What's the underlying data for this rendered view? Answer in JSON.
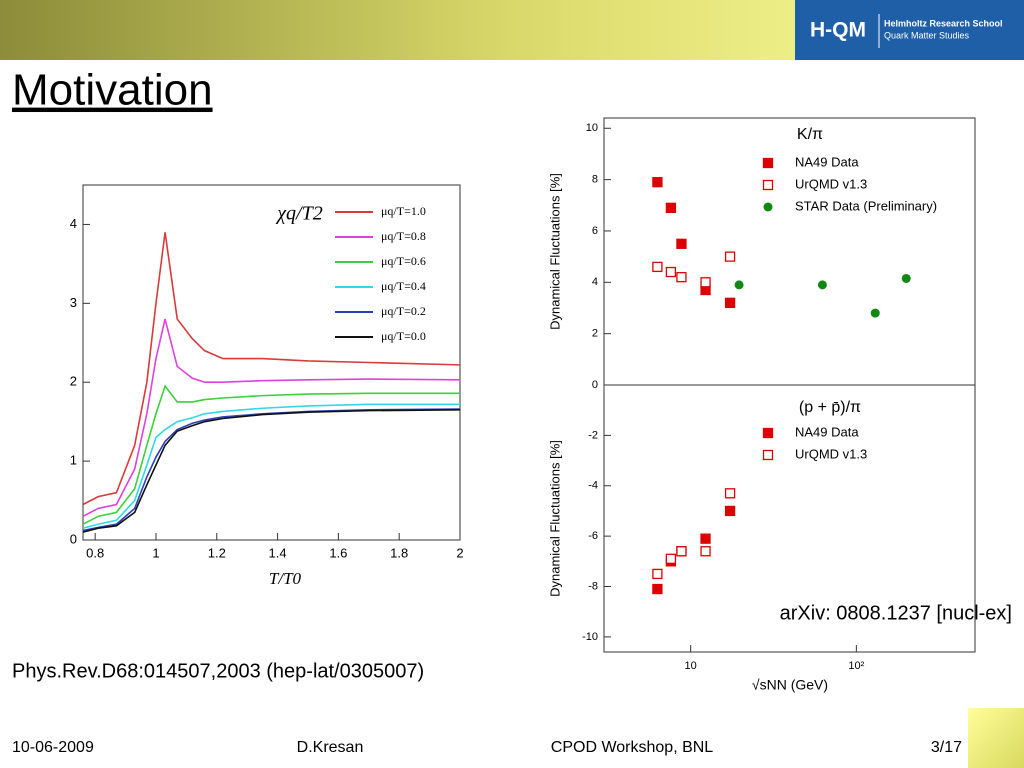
{
  "header": {
    "title": "Motivation",
    "logo": {
      "name": "H-QM",
      "line1": "Helmholtz Research School",
      "line2": "Quark Matter Studies"
    }
  },
  "chart_data": [
    {
      "type": "line",
      "title": "χq/T2",
      "xlabel": "T/T0",
      "xlim": [
        0.76,
        2
      ],
      "xticks": [
        0.8,
        1,
        1.2,
        1.4,
        1.6,
        1.8,
        2
      ],
      "ylim": [
        0,
        4.5
      ],
      "yticks": [
        0,
        1,
        2,
        3,
        4
      ],
      "x": [
        0.76,
        0.81,
        0.87,
        0.93,
        0.97,
        1.0,
        1.03,
        1.07,
        1.12,
        1.16,
        1.22,
        1.35,
        1.5,
        1.7,
        2.0
      ],
      "series": [
        {
          "name": "μq/T=1.0",
          "color": "#d93a3a",
          "values": [
            0.45,
            0.55,
            0.6,
            1.2,
            2.0,
            3.0,
            3.9,
            2.8,
            2.55,
            2.4,
            2.3,
            2.3,
            2.27,
            2.25,
            2.22
          ]
        },
        {
          "name": "μq/T=0.8",
          "color": "#e040e0",
          "values": [
            0.3,
            0.4,
            0.45,
            0.9,
            1.6,
            2.3,
            2.8,
            2.2,
            2.05,
            2.0,
            2.0,
            2.02,
            2.03,
            2.04,
            2.03
          ]
        },
        {
          "name": "μq/T=0.6",
          "color": "#3ad13a",
          "values": [
            0.2,
            0.3,
            0.35,
            0.65,
            1.2,
            1.6,
            1.95,
            1.75,
            1.75,
            1.78,
            1.8,
            1.83,
            1.85,
            1.86,
            1.86
          ]
        },
        {
          "name": "μq/T=0.4",
          "color": "#30d8e8",
          "values": [
            0.15,
            0.2,
            0.25,
            0.5,
            0.95,
            1.3,
            1.4,
            1.5,
            1.55,
            1.6,
            1.63,
            1.67,
            1.7,
            1.72,
            1.72
          ]
        },
        {
          "name": "μq/T=0.2",
          "color": "#2b3fb8",
          "values": [
            0.12,
            0.16,
            0.2,
            0.4,
            0.8,
            1.05,
            1.25,
            1.4,
            1.48,
            1.52,
            1.56,
            1.6,
            1.63,
            1.65,
            1.66
          ]
        },
        {
          "name": "μq/T=0.0",
          "color": "#111111",
          "values": [
            0.1,
            0.15,
            0.18,
            0.35,
            0.7,
            0.95,
            1.2,
            1.38,
            1.45,
            1.5,
            1.54,
            1.59,
            1.62,
            1.64,
            1.65
          ]
        }
      ]
    },
    {
      "type": "scatter",
      "title": "K/π",
      "ylabel": "Dynamical Fluctuations [%]",
      "xscale": "log",
      "xlim": [
        3,
        520
      ],
      "ylim": [
        0,
        10.4
      ],
      "yticks": [
        0,
        2,
        4,
        6,
        8,
        10
      ],
      "series": [
        {
          "name": "NA49 Data",
          "color": "#dd0000",
          "marker": "square-filled",
          "x": [
            6.3,
            7.6,
            8.8,
            12.3,
            17.3
          ],
          "values": [
            7.9,
            6.9,
            5.5,
            3.7,
            3.2
          ]
        },
        {
          "name": "UrQMD v1.3",
          "color": "#dd0000",
          "marker": "square-open",
          "x": [
            6.3,
            7.6,
            8.8,
            12.3,
            17.3
          ],
          "values": [
            4.6,
            4.4,
            4.2,
            4.0,
            5.0
          ]
        },
        {
          "name": "STAR Data (Preliminary)",
          "color": "#118811",
          "marker": "circle",
          "x": [
            19.6,
            62.4,
            130,
            200
          ],
          "values": [
            3.9,
            3.9,
            2.8,
            4.15
          ]
        }
      ]
    },
    {
      "type": "scatter",
      "title": "(p + p̄)/π",
      "ylabel": "Dynamical Fluctuations [%]",
      "xlabel": "√sNN (GeV)",
      "xscale": "log",
      "xlim": [
        3,
        520
      ],
      "xticks": [
        10,
        {
          "value": 100,
          "label": "10²"
        }
      ],
      "ylim": [
        -10.6,
        0
      ],
      "yticks": [
        -10,
        -8,
        -6,
        -4,
        -2
      ],
      "series": [
        {
          "name": "NA49 Data",
          "color": "#dd0000",
          "marker": "square-filled",
          "x": [
            6.3,
            7.6,
            8.8,
            12.3,
            17.3
          ],
          "values": [
            -8.1,
            -7.0,
            -6.6,
            -6.1,
            -5.0
          ]
        },
        {
          "name": "UrQMD v1.3",
          "color": "#dd0000",
          "marker": "square-open",
          "x": [
            6.3,
            7.6,
            8.8,
            12.3,
            17.3
          ],
          "values": [
            -7.5,
            -6.9,
            -6.6,
            -6.6,
            -4.3
          ]
        }
      ]
    }
  ],
  "captions": {
    "left": "Phys.Rev.D68:014507,2003 (hep-lat/0305007)",
    "right": "arXiv: 0808.1237 [nucl-ex]"
  },
  "footer": {
    "date": "10-06-2009",
    "author": "D.Kresan",
    "event": "CPOD Workshop, BNL",
    "page": "3/17"
  }
}
